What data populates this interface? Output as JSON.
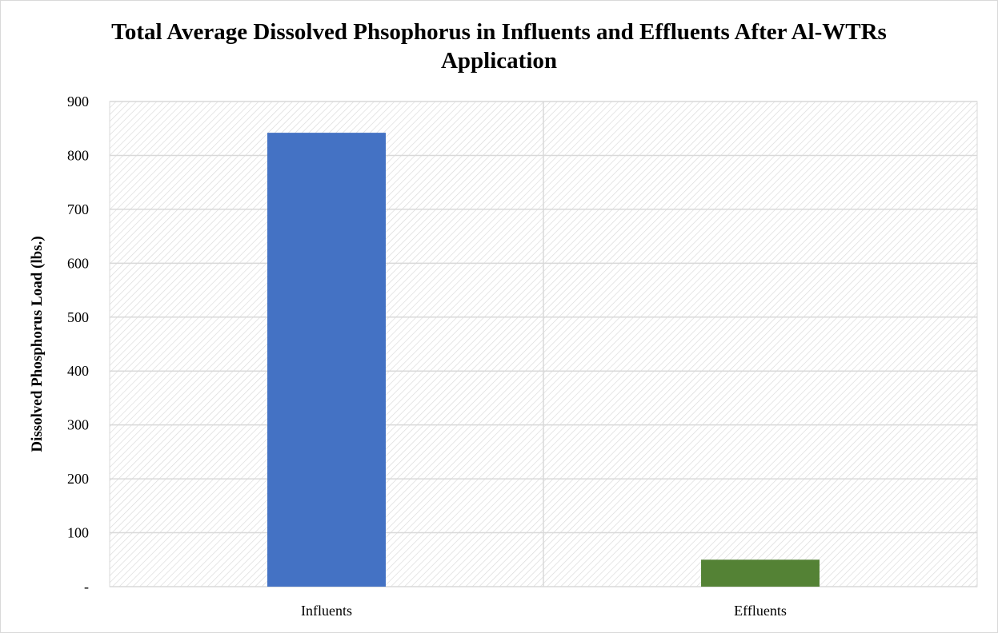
{
  "chart_data": {
    "type": "bar",
    "title": "Total Average Dissolved Phsophorus in Influents and Effluents After Al-WTRs Application",
    "xlabel": "",
    "ylabel": "Dissolved Phosphorus Load (lbs.)",
    "categories": [
      "Influents",
      "Effluents"
    ],
    "values": [
      842,
      50
    ],
    "ylim": [
      0,
      900
    ],
    "yticks": [
      0,
      100,
      200,
      300,
      400,
      500,
      600,
      700,
      800,
      900
    ],
    "yticklabels": [
      "-",
      "100",
      "200",
      "300",
      "400",
      "500",
      "600",
      "700",
      "800",
      "900"
    ],
    "bar_colors": [
      "#4472c4",
      "#548235"
    ],
    "grid": true,
    "legend": "none",
    "plot_background": "diagonal-hatch"
  }
}
